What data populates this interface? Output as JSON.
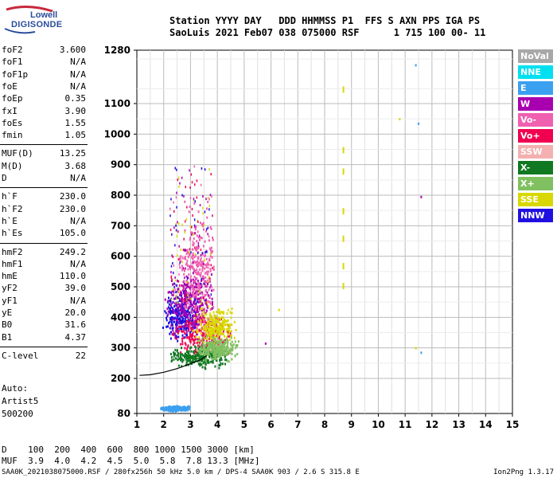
{
  "logo": {
    "line1": "Lowell",
    "line2": "DIGISONDE"
  },
  "header": {
    "line1": "Station YYYY DAY   DDD HHMMSS P1  FFS S AXN PPS IGA PS",
    "line2": "SaoLuis 2021 Feb07 038 075000 RSF      1 715 100 00- 11"
  },
  "params": [
    {
      "name": "foF2",
      "value": "3.600"
    },
    {
      "name": "foF1",
      "value": "N/A"
    },
    {
      "name": "foF1p",
      "value": "N/A"
    },
    {
      "name": "foE",
      "value": "N/A"
    },
    {
      "name": "foEp",
      "value": "0.35"
    },
    {
      "name": "fxI",
      "value": "3.90"
    },
    {
      "name": "foEs",
      "value": "1.55"
    },
    {
      "name": "fmin",
      "value": "1.05"
    },
    {
      "name": "MUF(D)",
      "value": "13.25"
    },
    {
      "name": "M(D)",
      "value": "3.68"
    },
    {
      "name": "D",
      "value": "N/A"
    },
    {
      "name": "h`F",
      "value": "230.0"
    },
    {
      "name": "h`F2",
      "value": "230.0"
    },
    {
      "name": "h`E",
      "value": "N/A"
    },
    {
      "name": "h`Es",
      "value": "105.0"
    },
    {
      "name": "hmF2",
      "value": "249.2"
    },
    {
      "name": "hmF1",
      "value": "N/A"
    },
    {
      "name": "hmE",
      "value": "110.0"
    },
    {
      "name": "yF2",
      "value": "39.0"
    },
    {
      "name": "yF1",
      "value": "N/A"
    },
    {
      "name": "yE",
      "value": "20.0"
    },
    {
      "name": "B0",
      "value": "31.6"
    },
    {
      "name": "B1",
      "value": "4.37"
    },
    {
      "name": "C-level",
      "value": "22"
    }
  ],
  "auto": {
    "line1": "Auto:",
    "line2": "Artist5",
    "line3": "500200"
  },
  "legend": [
    {
      "label": "NoVal",
      "color": "#a8a8a8"
    },
    {
      "label": "NNE",
      "color": "#00e0f0"
    },
    {
      "label": "E",
      "color": "#3ca0f0"
    },
    {
      "label": "W",
      "color": "#a800b0"
    },
    {
      "label": "Vo-",
      "color": "#f060b0"
    },
    {
      "label": "Vo+",
      "color": "#f00050"
    },
    {
      "label": "SSW",
      "color": "#f4b0b0"
    },
    {
      "label": "X-",
      "color": "#107820"
    },
    {
      "label": "X+",
      "color": "#80c060"
    },
    {
      "label": "SSE",
      "color": "#d8d800"
    },
    {
      "label": "NNW",
      "color": "#2010e0"
    }
  ],
  "bottom": {
    "dline": "D    100  200  400  600  800 1000 1500 3000 [km]",
    "mufline": "MUF  3.9  4.0  4.2  4.5  5.0  5.8  7.8 13.3 [MHz]"
  },
  "footer": {
    "left": "SAA0K_2021038075000.RSF / 280fx256h 50 kHz 5.0 km / DPS-4 SAA0K 903 / 2.6 S 315.8 E",
    "right": "Ion2Png 1.3.17"
  },
  "chart_data": {
    "type": "scatter",
    "xlim": [
      1,
      15
    ],
    "ylim": [
      80,
      1280
    ],
    "xticks": [
      1,
      2,
      3,
      4,
      5,
      6,
      7,
      8,
      9,
      10,
      11,
      12,
      13,
      14,
      15
    ],
    "yticks": [
      80,
      200,
      300,
      400,
      500,
      600,
      700,
      800,
      900,
      1000,
      1100,
      1280
    ],
    "grid": true,
    "clusters": [
      {
        "color": "#2010e0",
        "x": [
          1.9,
          3.3
        ],
        "y": [
          300,
          520
        ]
      },
      {
        "color": "#f00050",
        "x": [
          2.3,
          4.6
        ],
        "y": [
          250,
          440
        ]
      },
      {
        "color": "#a800b0",
        "x": [
          2.0,
          4.0
        ],
        "y": [
          300,
          600
        ]
      },
      {
        "color": "#d8d800",
        "x": [
          3.0,
          4.8
        ],
        "y": [
          300,
          450
        ]
      },
      {
        "color": "#f060b0",
        "x": [
          2.5,
          4.0
        ],
        "y": [
          330,
          800
        ]
      },
      {
        "color": "#107820",
        "x": [
          2.2,
          4.4
        ],
        "y": [
          230,
          320
        ]
      },
      {
        "color": "#80c060",
        "x": [
          3.2,
          4.8
        ],
        "y": [
          250,
          350
        ]
      },
      {
        "color": "#3ca0f0",
        "x": [
          1.8,
          3.0
        ],
        "y": [
          90,
          110
        ]
      }
    ],
    "trace": [
      {
        "x": 1.1,
        "y": 210
      },
      {
        "x": 1.5,
        "y": 212
      },
      {
        "x": 2.0,
        "y": 220
      },
      {
        "x": 2.5,
        "y": 232
      },
      {
        "x": 3.0,
        "y": 248
      },
      {
        "x": 3.4,
        "y": 262
      },
      {
        "x": 3.6,
        "y": 275
      }
    ],
    "isolated_points": [
      {
        "x": 8.7,
        "y": 1150,
        "color": "#d8d800"
      },
      {
        "x": 8.7,
        "y": 950,
        "color": "#d8d800"
      },
      {
        "x": 8.7,
        "y": 880,
        "color": "#d8d800"
      },
      {
        "x": 8.7,
        "y": 750,
        "color": "#d8d800"
      },
      {
        "x": 8.7,
        "y": 660,
        "color": "#d8d800"
      },
      {
        "x": 8.7,
        "y": 570,
        "color": "#d8d800"
      },
      {
        "x": 8.7,
        "y": 505,
        "color": "#d8d800"
      },
      {
        "x": 10.8,
        "y": 1045,
        "color": "#d8d800"
      },
      {
        "x": 11.4,
        "y": 1225,
        "color": "#3ca0f0"
      },
      {
        "x": 11.5,
        "y": 1030,
        "color": "#3ca0f0"
      },
      {
        "x": 11.6,
        "y": 790,
        "color": "#a800b0"
      },
      {
        "x": 11.6,
        "y": 280,
        "color": "#3ca0f0"
      },
      {
        "x": 11.4,
        "y": 295,
        "color": "#d8d800"
      },
      {
        "x": 6.3,
        "y": 420,
        "color": "#d8d800"
      },
      {
        "x": 5.8,
        "y": 310,
        "color": "#a800b0"
      }
    ]
  }
}
